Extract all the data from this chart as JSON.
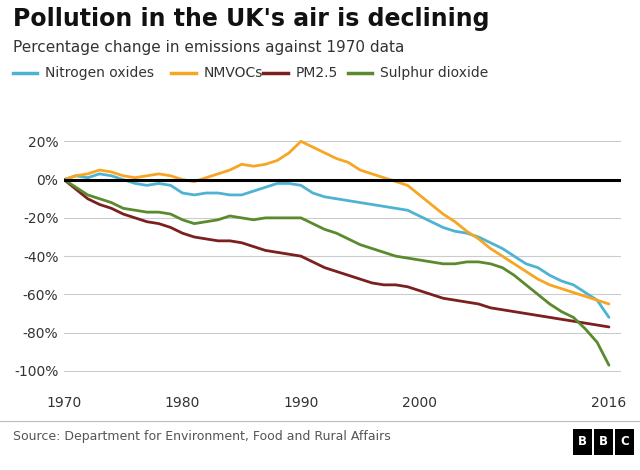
{
  "title": "Pollution in the UK's air is declining",
  "subtitle": "Percentage change in emissions against 1970 data",
  "source": "Source: Department for Environment, Food and Rural Affairs",
  "bbc_label": "BBC",
  "years": [
    1970,
    1971,
    1972,
    1973,
    1974,
    1975,
    1976,
    1977,
    1978,
    1979,
    1980,
    1981,
    1982,
    1983,
    1984,
    1985,
    1986,
    1987,
    1988,
    1989,
    1990,
    1991,
    1992,
    1993,
    1994,
    1995,
    1996,
    1997,
    1998,
    1999,
    2000,
    2001,
    2002,
    2003,
    2004,
    2005,
    2006,
    2007,
    2008,
    2009,
    2010,
    2011,
    2012,
    2013,
    2014,
    2015,
    2016
  ],
  "nitrogen_oxides": [
    0,
    2,
    1,
    3,
    2,
    0,
    -2,
    -3,
    -2,
    -3,
    -7,
    -8,
    -7,
    -7,
    -8,
    -8,
    -6,
    -4,
    -2,
    -2,
    -3,
    -7,
    -9,
    -10,
    -11,
    -12,
    -13,
    -14,
    -15,
    -16,
    -19,
    -22,
    -25,
    -27,
    -28,
    -30,
    -33,
    -36,
    -40,
    -44,
    -46,
    -50,
    -53,
    -55,
    -59,
    -63,
    -72
  ],
  "nmvocs": [
    0,
    2,
    3,
    5,
    4,
    2,
    1,
    2,
    3,
    2,
    0,
    -1,
    1,
    3,
    5,
    8,
    7,
    8,
    10,
    14,
    20,
    17,
    14,
    11,
    9,
    5,
    3,
    1,
    -1,
    -3,
    -8,
    -13,
    -18,
    -22,
    -27,
    -31,
    -36,
    -40,
    -44,
    -48,
    -52,
    -55,
    -57,
    -59,
    -61,
    -63,
    -65
  ],
  "pm25": [
    0,
    -5,
    -10,
    -13,
    -15,
    -18,
    -20,
    -22,
    -23,
    -25,
    -28,
    -30,
    -31,
    -32,
    -32,
    -33,
    -35,
    -37,
    -38,
    -39,
    -40,
    -43,
    -46,
    -48,
    -50,
    -52,
    -54,
    -55,
    -55,
    -56,
    -58,
    -60,
    -62,
    -63,
    -64,
    -65,
    -67,
    -68,
    -69,
    -70,
    -71,
    -72,
    -73,
    -74,
    -75,
    -76,
    -77
  ],
  "sulphur_dioxide": [
    0,
    -4,
    -8,
    -10,
    -12,
    -15,
    -16,
    -17,
    -17,
    -18,
    -21,
    -23,
    -22,
    -21,
    -19,
    -20,
    -21,
    -20,
    -20,
    -20,
    -20,
    -23,
    -26,
    -28,
    -31,
    -34,
    -36,
    -38,
    -40,
    -41,
    -42,
    -43,
    -44,
    -44,
    -43,
    -43,
    -44,
    -46,
    -50,
    -55,
    -60,
    -65,
    -69,
    -72,
    -78,
    -85,
    -97
  ],
  "colors": {
    "nitrogen_oxides": "#4eb3d3",
    "nmvocs": "#f5a623",
    "pm25": "#7b1f1f",
    "sulphur_dioxide": "#5a8a2e"
  },
  "ylim": [
    -110,
    30
  ],
  "yticks": [
    -100,
    -80,
    -60,
    -40,
    -20,
    0,
    20
  ],
  "xlim": [
    1970,
    2017
  ],
  "xticks": [
    1970,
    1980,
    1990,
    2000,
    2016
  ],
  "background_color": "#ffffff",
  "grid_color": "#cccccc",
  "line_width": 2.0,
  "title_fontsize": 17,
  "subtitle_fontsize": 11,
  "tick_fontsize": 10,
  "legend_fontsize": 10,
  "source_fontsize": 9
}
